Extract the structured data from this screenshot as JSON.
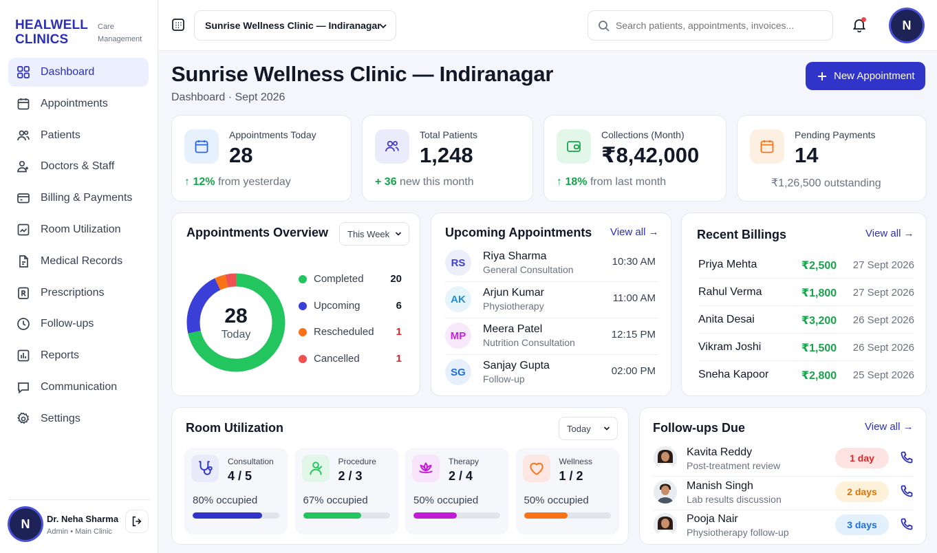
{
  "brand": {
    "name_line1": "HEALWELL",
    "name_line2": "CLINICS",
    "sub_line1": "Care",
    "sub_line2": "Management"
  },
  "sidebar": {
    "items": [
      {
        "label": "Dashboard",
        "icon": "grid-icon",
        "active": true
      },
      {
        "label": "Appointments",
        "icon": "calendar-icon"
      },
      {
        "label": "Patients",
        "icon": "users-icon"
      },
      {
        "label": "Doctors & Staff",
        "icon": "staff-icon"
      },
      {
        "label": "Billing & Payments",
        "icon": "wallet-icon"
      },
      {
        "label": "Room Utilization",
        "icon": "room-icon"
      },
      {
        "label": "Medical Records",
        "icon": "file-icon"
      },
      {
        "label": "Prescriptions",
        "icon": "prescription-icon"
      },
      {
        "label": "Follow-ups",
        "icon": "clock-icon"
      },
      {
        "label": "Reports",
        "icon": "report-icon"
      },
      {
        "label": "Communication",
        "icon": "chat-icon"
      },
      {
        "label": "Settings",
        "icon": "gear-icon"
      }
    ],
    "user": {
      "initial": "N",
      "name": "Dr. Neha Sharma",
      "role": "Admin • Main Clinic"
    }
  },
  "topbar": {
    "clinic_select": "Sunrise Wellness Clinic — Indiranagar",
    "search_placeholder": "Search patients, appointments, invoices...",
    "avatar_initial": "N"
  },
  "header": {
    "title": "Sunrise Wellness Clinic — Indiranagar",
    "subtitle": "Dashboard · Sept 2026",
    "new_button": "New Appointment"
  },
  "stats": [
    {
      "label": "Appointments Today",
      "value": "28",
      "trend": "12%",
      "trend_text": "from yesterday",
      "color": "#2563eb",
      "bg": "#e7f1fd"
    },
    {
      "label": "Total Patients",
      "value": "1,248",
      "trend": "36",
      "trend_text": "new this month",
      "color": "#4338ca",
      "bg": "#ecebfb"
    },
    {
      "label": "Collections (Month)",
      "value": "₹8,42,000",
      "trend": "18%",
      "trend_text": "from last month",
      "color": "#16a34a",
      "bg": "#e3f7e9"
    },
    {
      "label": "Pending Payments",
      "value": "14",
      "trend": "",
      "trend_text": "₹1,26,500 outstanding",
      "color": "#f97316",
      "bg": "#fdf0e3"
    }
  ],
  "overview": {
    "title": "Appointments Overview",
    "range": "This Week",
    "center_value": "28",
    "center_label": "Today",
    "legend": [
      {
        "label": "Completed",
        "value": 20,
        "color": "#22c55e",
        "value_color": "#111827"
      },
      {
        "label": "Upcoming",
        "value": 6,
        "color": "#3a3fd8",
        "value_color": "#111827"
      },
      {
        "label": "Rescheduled",
        "value": 1,
        "color": "#f97316",
        "value_color": "#dc2626"
      },
      {
        "label": "Cancelled",
        "value": 1,
        "color": "#f05252",
        "value_color": "#dc2626"
      }
    ]
  },
  "upcoming": {
    "title": "Upcoming Appointments",
    "view_all": "View all →",
    "items": [
      {
        "initials": "RS",
        "name": "Riya Sharma",
        "type": "General Consultation",
        "time": "10:30 AM",
        "fg": "#3a3fd8",
        "bg": "#eceefc"
      },
      {
        "initials": "AK",
        "name": "Arjun Kumar",
        "type": "Physiotherapy",
        "time": "11:00 AM",
        "fg": "#1d8fd8",
        "bg": "#e6f4fc"
      },
      {
        "initials": "MP",
        "name": "Meera Patel",
        "type": "Nutrition Consultation",
        "time": "12:15 PM",
        "fg": "#c026d3",
        "bg": "#f8e8fb"
      },
      {
        "initials": "SG",
        "name": "Sanjay Gupta",
        "type": "Follow-up",
        "time": "02:00 PM",
        "fg": "#1d6fd8",
        "bg": "#e6effc"
      }
    ]
  },
  "billings": {
    "title": "Recent Billings",
    "view_all": "View all →",
    "items": [
      {
        "name": "Priya Mehta",
        "amount": "₹2,500",
        "date": "27 Sept 2026"
      },
      {
        "name": "Rahul Verma",
        "amount": "₹1,800",
        "date": "27 Sept 2026"
      },
      {
        "name": "Anita Desai",
        "amount": "₹3,200",
        "date": "26 Sept 2026"
      },
      {
        "name": "Vikram Joshi",
        "amount": "₹1,500",
        "date": "26 Sept 2026"
      },
      {
        "name": "Sneha Kapoor",
        "amount": "₹2,800",
        "date": "25 Sept 2026"
      }
    ]
  },
  "rooms": {
    "title": "Room Utilization",
    "range": "Today",
    "items": [
      {
        "label": "Consultation",
        "value": "4 / 5",
        "occupied": "80% occupied",
        "pct": 0.8,
        "color": "#3134c9",
        "bg": "#e9ebfb",
        "icon": "stethoscope-icon"
      },
      {
        "label": "Procedure",
        "value": "2 / 3",
        "occupied": "67% occupied",
        "pct": 0.67,
        "color": "#22c55e",
        "bg": "#e2f7e8",
        "icon": "person-icon"
      },
      {
        "label": "Therapy",
        "value": "2 / 4",
        "occupied": "50% occupied",
        "pct": 0.5,
        "color": "#c21bd6",
        "bg": "#f8e4fb",
        "icon": "lotus-icon"
      },
      {
        "label": "Wellness",
        "value": "1 / 2",
        "occupied": "50% occupied",
        "pct": 0.5,
        "color": "#f97316",
        "bg": "#fde7e3",
        "icon": "heart-icon"
      }
    ]
  },
  "followups": {
    "title": "Follow-ups Due",
    "view_all": "View all →",
    "items": [
      {
        "name": "Kavita Reddy",
        "reason": "Post-treatment review",
        "due": "1 day",
        "fg": "#dc2626",
        "bg": "#fde4e2",
        "avatar": "female-avatar-icon"
      },
      {
        "name": "Manish Singh",
        "reason": "Lab results discussion",
        "due": "2 days",
        "fg": "#d97706",
        "bg": "#fdf1d9",
        "avatar": "male-avatar-icon"
      },
      {
        "name": "Pooja Nair",
        "reason": "Physiotherapy follow-up",
        "due": "3 days",
        "fg": "#1d6fd8",
        "bg": "#e1f0fb",
        "avatar": "female-avatar-icon"
      }
    ]
  }
}
